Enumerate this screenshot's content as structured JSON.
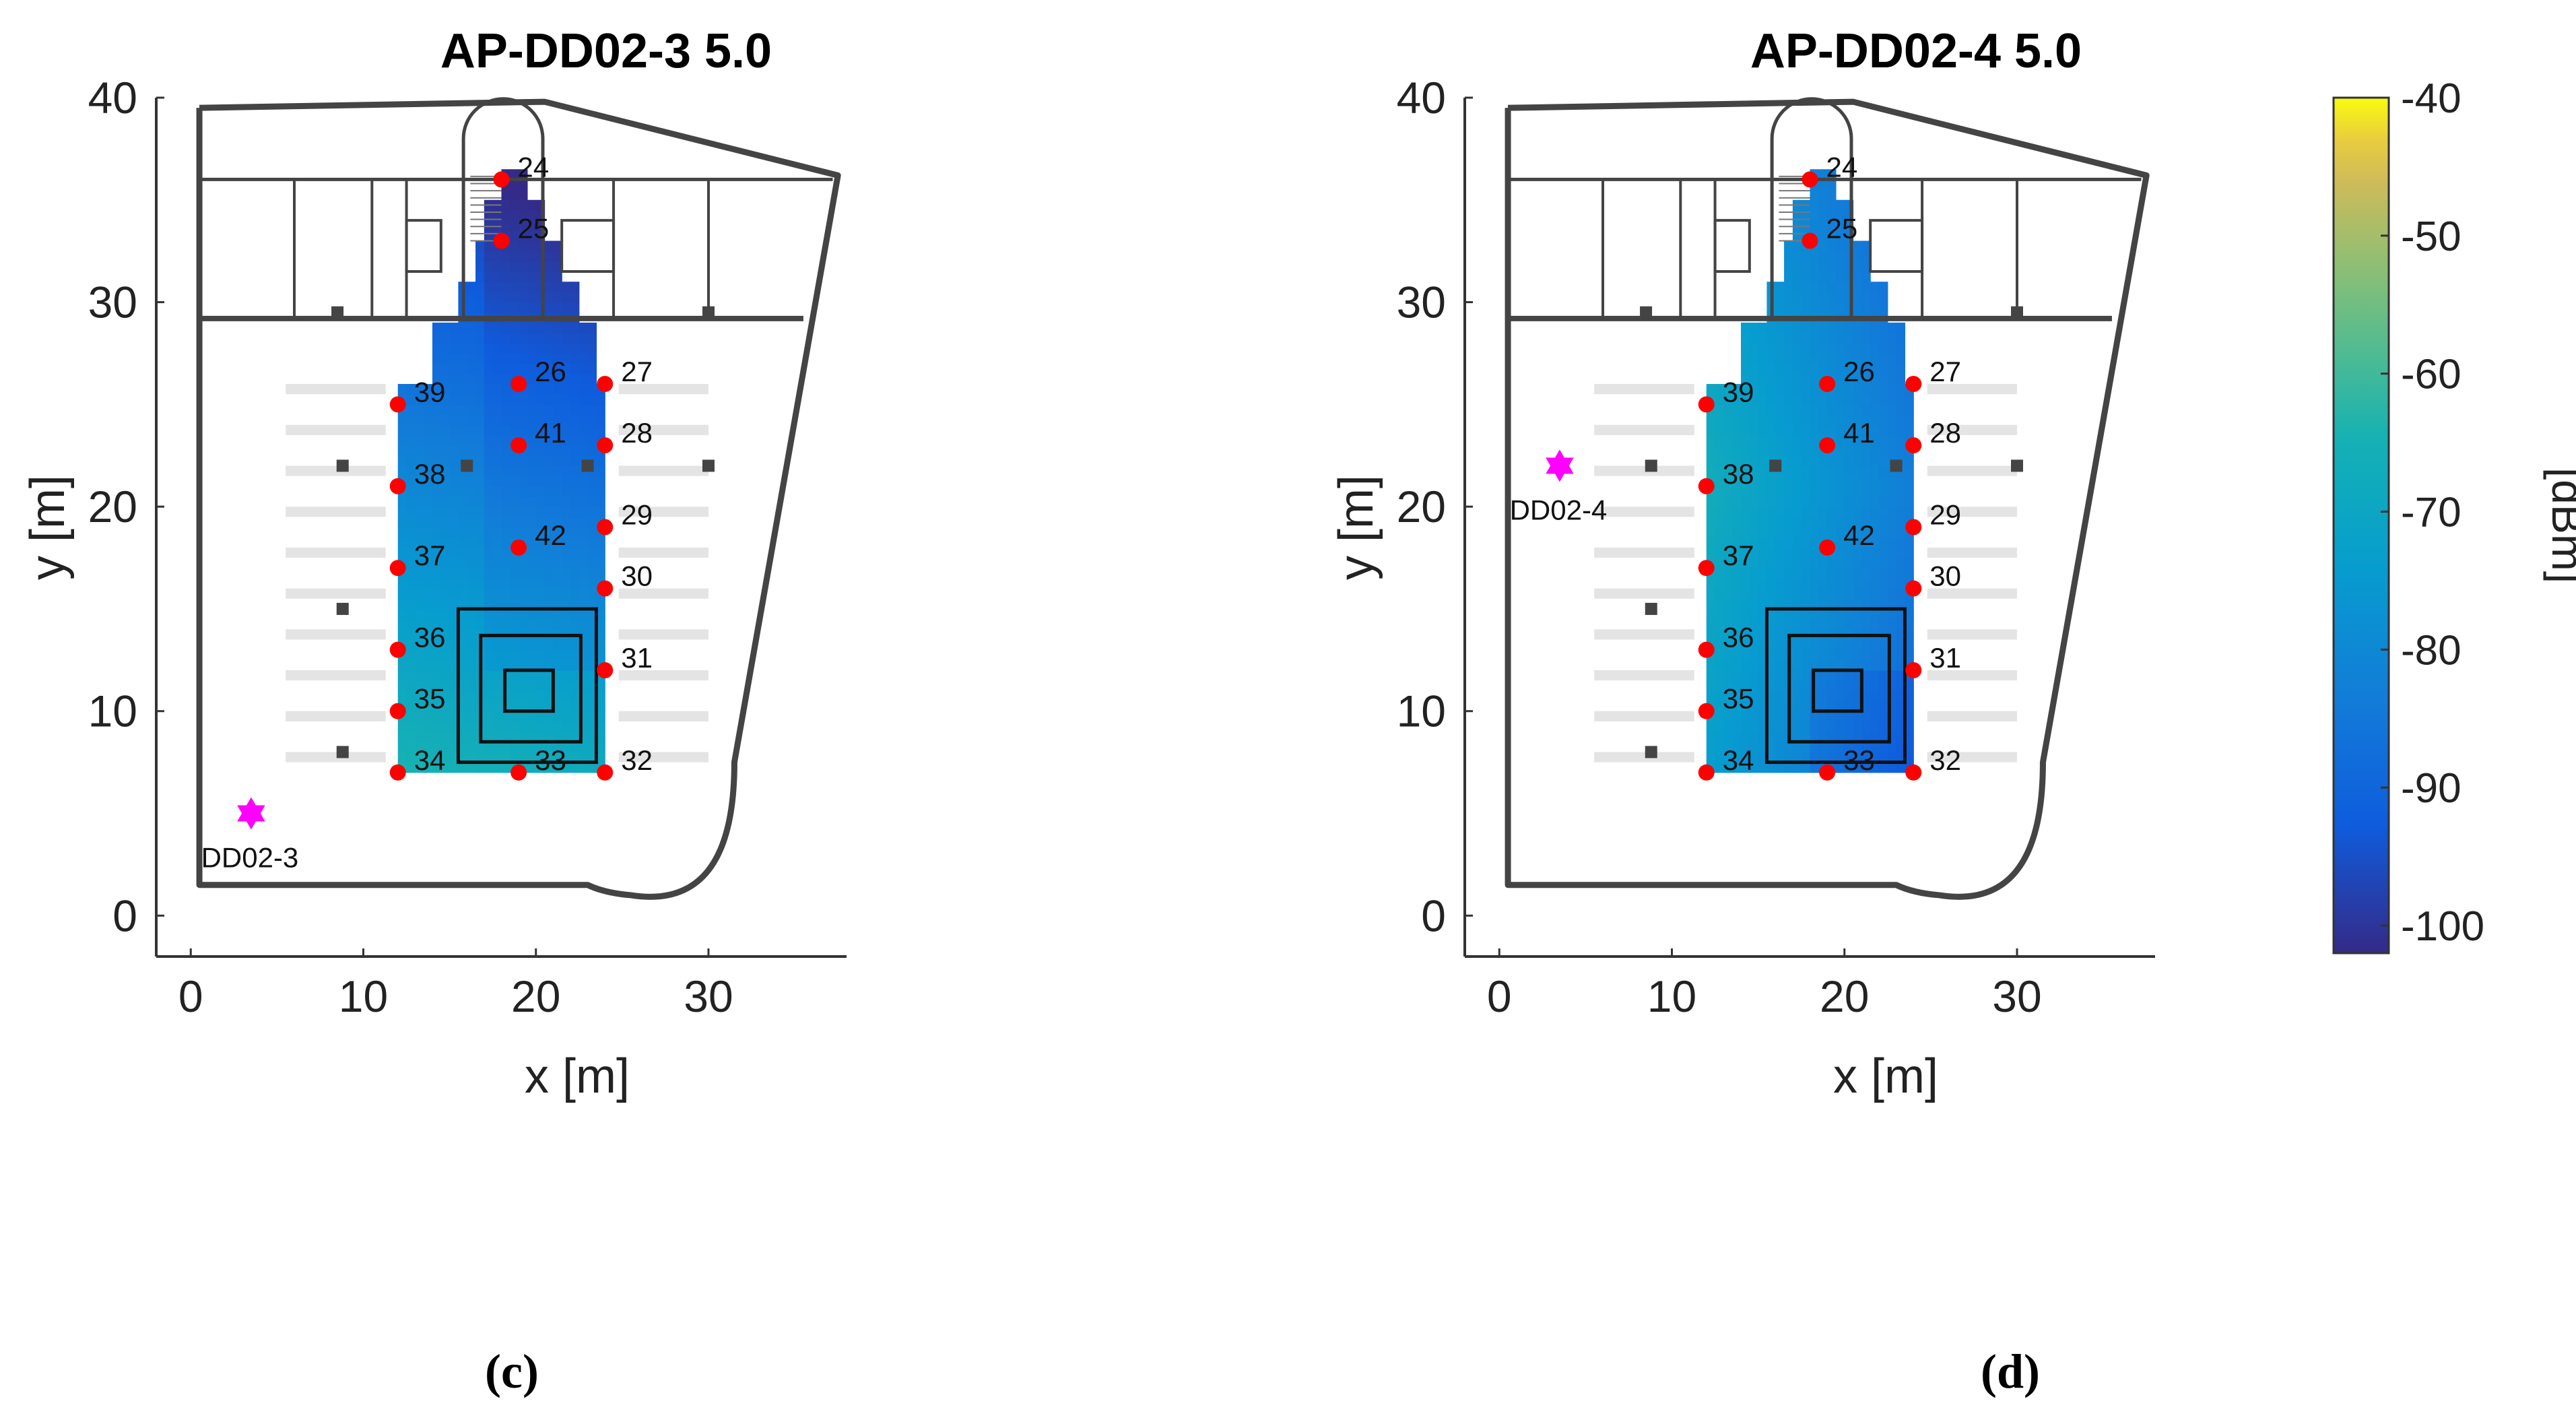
{
  "chart_data": [
    {
      "type": "heatmap",
      "title": "AP-DD02-3 5.0",
      "xlabel": "x [m]",
      "ylabel": "y [m]",
      "xlim": [
        -2,
        38
      ],
      "ylim": [
        -2,
        40
      ],
      "xticks": [
        0,
        10,
        20,
        30
      ],
      "yticks": [
        0,
        10,
        20,
        30,
        40
      ],
      "ap": {
        "label": "DD02-3",
        "x": 3.5,
        "y": 5
      },
      "colormap_bias": "south",
      "caption": "(c)"
    },
    {
      "type": "heatmap",
      "title": "AP-DD02-4 5.0",
      "xlabel": "x [m]",
      "ylabel": "y [m]",
      "xlim": [
        -2,
        38
      ],
      "ylim": [
        -2,
        40
      ],
      "xticks": [
        0,
        10,
        20,
        30
      ],
      "yticks": [
        0,
        10,
        20,
        30,
        40
      ],
      "ap": {
        "label": "DD02-4",
        "x": 3.5,
        "y": 22
      },
      "colormap_bias": "west",
      "caption": "(d)"
    }
  ],
  "measurement_points": [
    {
      "id": "24",
      "x": 18,
      "y": 36
    },
    {
      "id": "25",
      "x": 18,
      "y": 33
    },
    {
      "id": "26",
      "x": 19,
      "y": 26
    },
    {
      "id": "27",
      "x": 24,
      "y": 26
    },
    {
      "id": "28",
      "x": 24,
      "y": 23
    },
    {
      "id": "29",
      "x": 24,
      "y": 19
    },
    {
      "id": "30",
      "x": 24,
      "y": 16
    },
    {
      "id": "31",
      "x": 24,
      "y": 12
    },
    {
      "id": "32",
      "x": 24,
      "y": 7
    },
    {
      "id": "33",
      "x": 19,
      "y": 7
    },
    {
      "id": "34",
      "x": 12,
      "y": 7
    },
    {
      "id": "35",
      "x": 12,
      "y": 10
    },
    {
      "id": "36",
      "x": 12,
      "y": 13
    },
    {
      "id": "37",
      "x": 12,
      "y": 17
    },
    {
      "id": "38",
      "x": 12,
      "y": 21
    },
    {
      "id": "39",
      "x": 12,
      "y": 25
    },
    {
      "id": "41",
      "x": 19,
      "y": 23
    },
    {
      "id": "42",
      "x": 19,
      "y": 18
    }
  ],
  "colorbar": {
    "label": "[dBm]",
    "min": -102,
    "max": -40,
    "ticks": [
      -40,
      -50,
      -60,
      -70,
      -80,
      -90,
      -100
    ],
    "tick_labels": [
      "-40",
      "-50",
      "-60",
      "-70",
      "-80",
      "-90",
      "-100"
    ]
  },
  "colors": {
    "point": "#ff0000",
    "ap_marker": "#ff00ff",
    "wall": "#444444"
  }
}
